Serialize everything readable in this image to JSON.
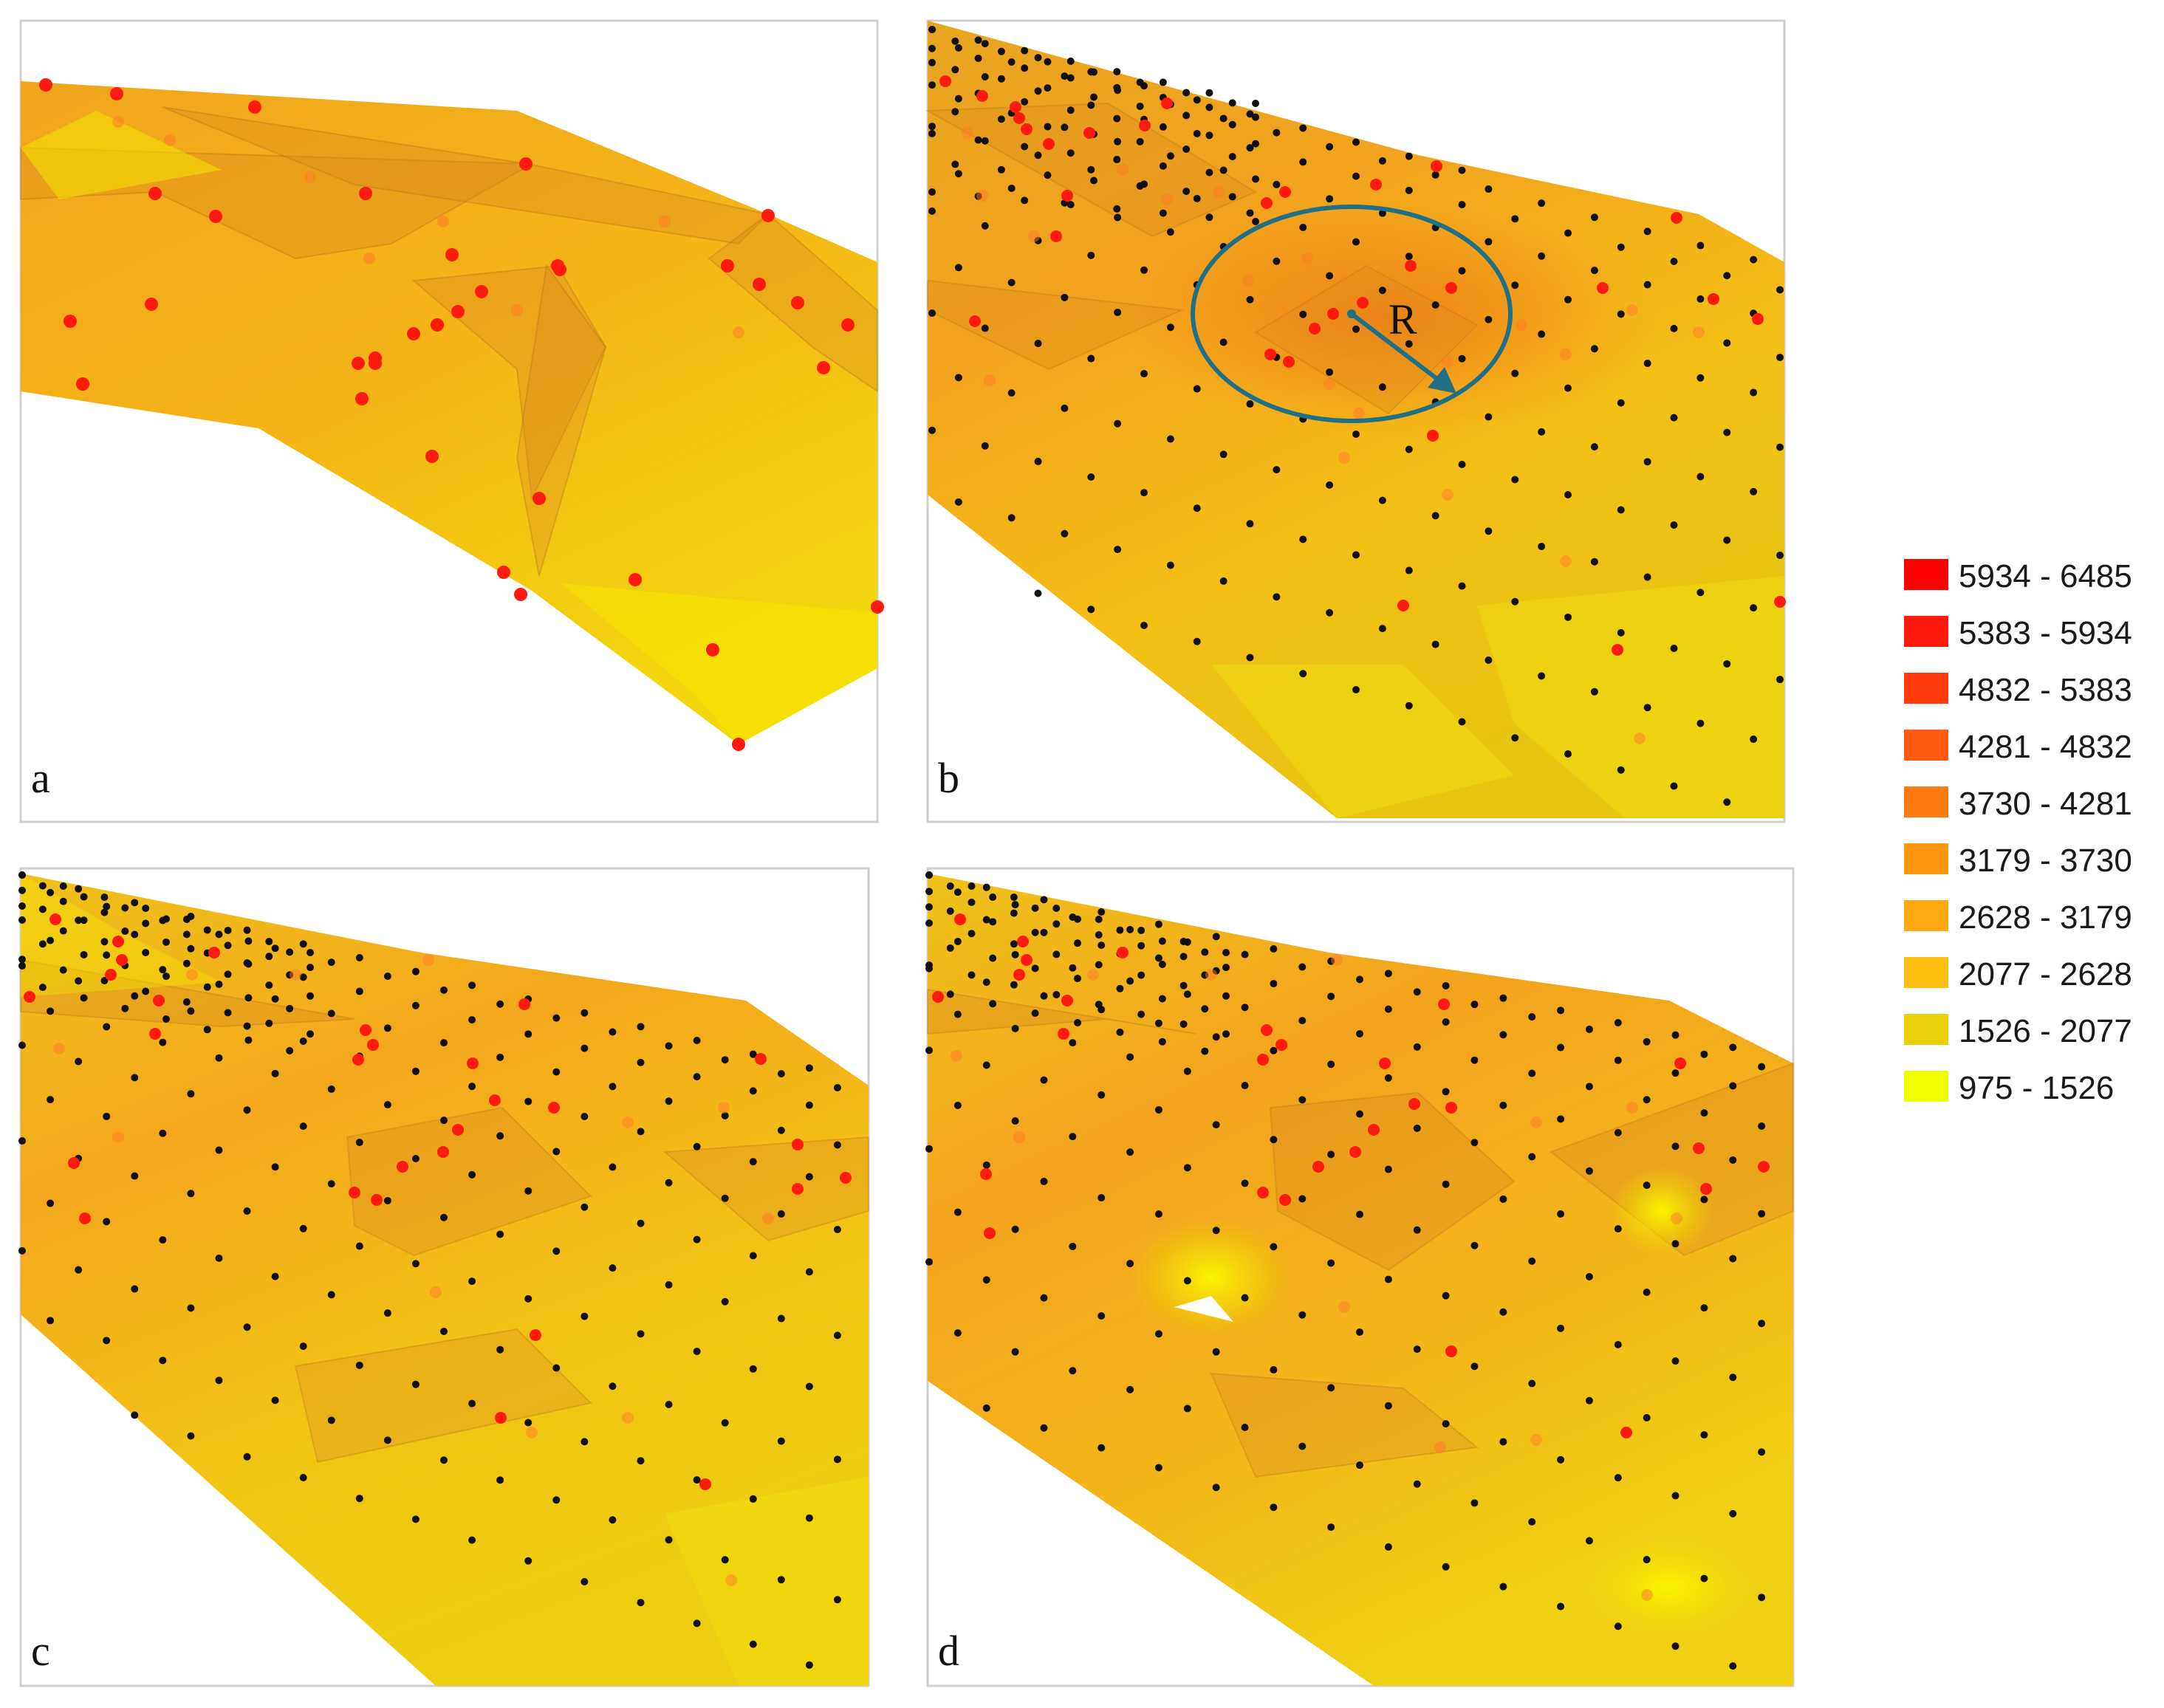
{
  "figure": {
    "panels": [
      {
        "id": "a",
        "label": "a"
      },
      {
        "id": "b",
        "label": "b",
        "annotation": "R"
      },
      {
        "id": "c",
        "label": "c"
      },
      {
        "id": "d",
        "label": "d"
      }
    ],
    "legend": {
      "items": [
        {
          "label": "5934 - 6485",
          "color": "#ff0000"
        },
        {
          "label": "5383 - 5934",
          "color": "#ff1a0d"
        },
        {
          "label": "4832 - 5383",
          "color": "#ff3b0a"
        },
        {
          "label": "4281 - 4832",
          "color": "#ff5a10"
        },
        {
          "label": "3730 - 4281",
          "color": "#ff7a10"
        },
        {
          "label": "3179 - 3730",
          "color": "#ff9510"
        },
        {
          "label": "2628 - 3179",
          "color": "#ffa812"
        },
        {
          "label": "2077 - 2628",
          "color": "#ffbf10"
        },
        {
          "label": "1526 - 2077",
          "color": "#e9d10a"
        },
        {
          "label": "975 - 1526",
          "color": "#eeff00"
        }
      ]
    },
    "colors": {
      "surface_light": "#f2c012",
      "surface_mid": "#f5a81a",
      "surface_dark": "#e88a1a",
      "surface_yellow": "#f6e600",
      "sample_point": "#ff1a10",
      "grid_point": "#111111",
      "circle": "#1f6f86"
    }
  }
}
